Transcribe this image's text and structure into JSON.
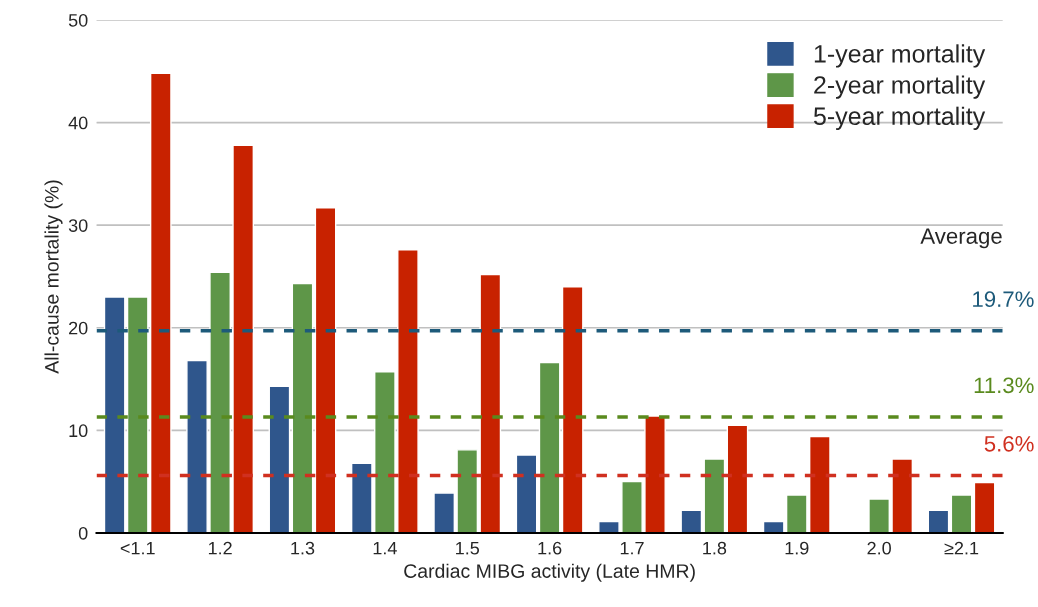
{
  "chart_data": {
    "type": "bar",
    "xlabel": "Cardiac MIBG activity (Late HMR)",
    "ylabel": "All-cause mortality (%)",
    "categories": [
      "<1.1",
      "1.2",
      "1.3",
      "1.4",
      "1.5",
      "1.6",
      "1.7",
      "1.8",
      "1.9",
      "2.0",
      "≥2.1"
    ],
    "series": [
      {
        "name": "1-year mortality",
        "color": "#2f568c",
        "values": [
          23,
          16.8,
          14.3,
          6.8,
          3.9,
          7.6,
          1.1,
          2.2,
          1.1,
          null,
          2.2
        ]
      },
      {
        "name": "2-year mortality",
        "color": "#5e9648",
        "values": [
          23,
          25.4,
          24.3,
          15.7,
          8.1,
          16.6,
          5.0,
          7.2,
          3.7,
          3.3,
          3.7
        ]
      },
      {
        "name": "5-year mortality",
        "color": "#c82200",
        "values": [
          44.8,
          37.8,
          31.7,
          27.6,
          25.2,
          24.0,
          11.4,
          10.5,
          9.4,
          7.2,
          4.9
        ]
      }
    ],
    "ylim": [
      0,
      50
    ],
    "yticks": [
      0,
      10,
      20,
      30,
      40,
      50
    ],
    "grid": "y",
    "legend": "top right",
    "ref_lines": [
      {
        "axis": "y",
        "value": 19.7,
        "label": "19.7%",
        "color": "#1d5a7a",
        "line_style": "dashed"
      },
      {
        "axis": "y",
        "value": 11.3,
        "label": "11.3%",
        "color": "#5a8a1e",
        "line_style": "dashed"
      },
      {
        "axis": "y",
        "value": 5.6,
        "label": "5.6%",
        "color": "#d03020",
        "line_style": "dashed"
      }
    ],
    "annotations": [
      "Average"
    ]
  }
}
